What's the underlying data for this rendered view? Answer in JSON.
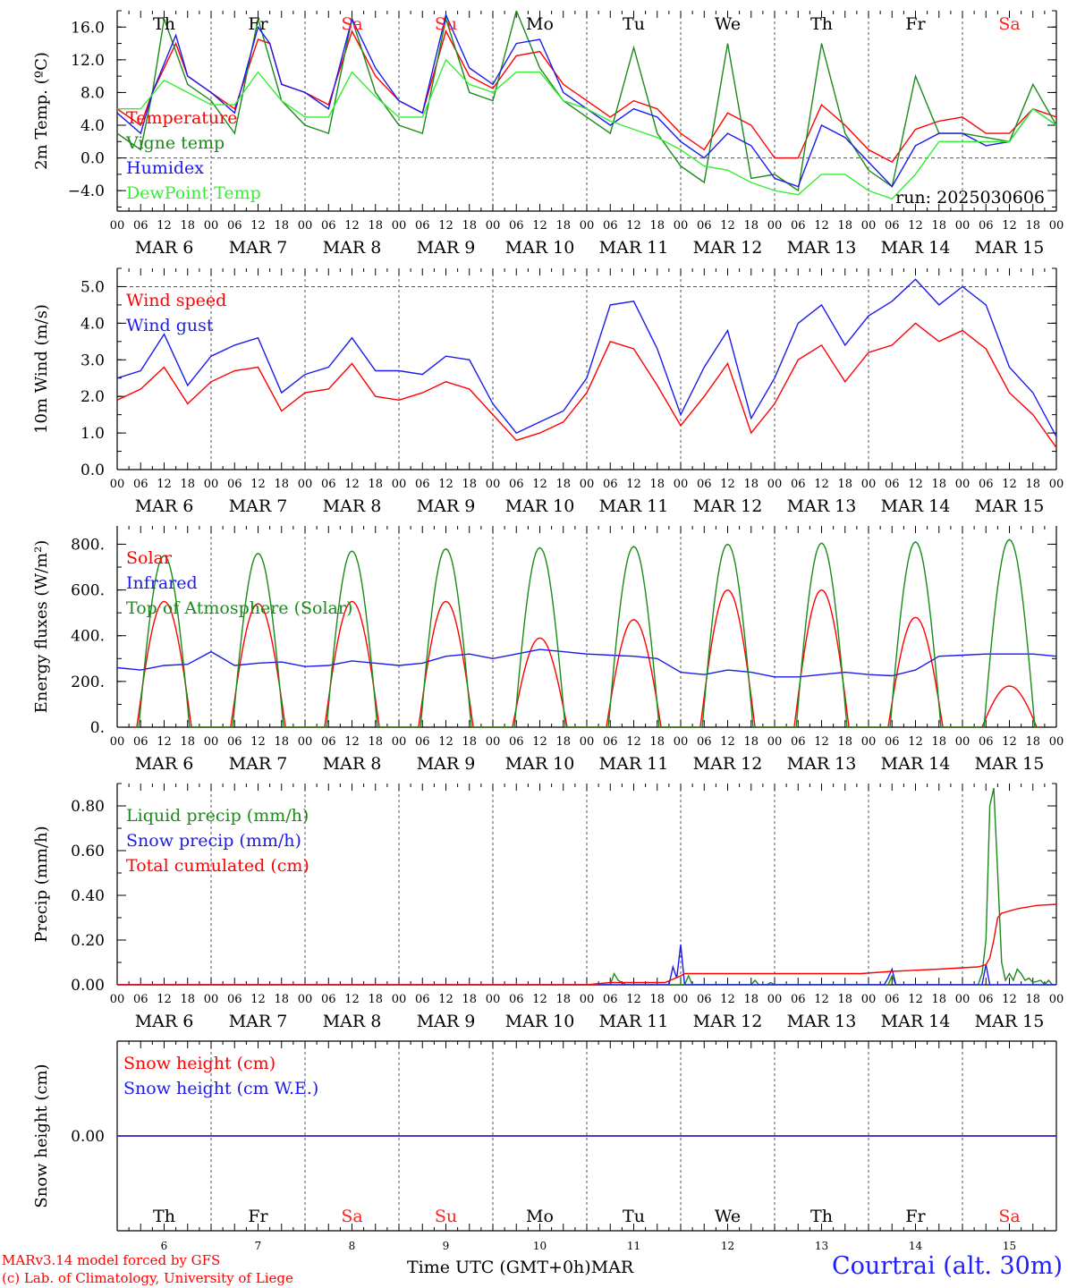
{
  "colors": {
    "red": "#ff0000",
    "green": "#1a8a1a",
    "blue": "#1a1aee",
    "lightgreen": "#33ee33",
    "weekend": "#ff2020",
    "axis": "#000000"
  },
  "run_label": "run: 2025030606",
  "x_axis": {
    "hour_labels": [
      "00",
      "06",
      "12",
      "18"
    ],
    "end_label": "00",
    "dates": [
      "MAR  6",
      "MAR  7",
      "MAR  8",
      "MAR  9",
      "MAR 10",
      "MAR 11",
      "MAR 12",
      "MAR 13",
      "MAR 14",
      "MAR 15"
    ],
    "weekdays": [
      "Th",
      "Fr",
      "Sa",
      "Su",
      "Mo",
      "Tu",
      "We",
      "Th",
      "Fr",
      "Sa"
    ],
    "weekend_flags": [
      false,
      false,
      true,
      true,
      false,
      false,
      false,
      false,
      false,
      true
    ],
    "day_numbers": [
      "6",
      "7",
      "8",
      "9",
      "10",
      "11",
      "12",
      "13",
      "14",
      "15"
    ],
    "title": "Time UTC (GMT+0h)",
    "month": "MAR"
  },
  "footer": {
    "credit1": "MARv3.14 model forced by GFS",
    "credit2": "(c) Lab. of Climatology, University of Liege",
    "station": "Courtrai (alt. 30m)"
  },
  "chart_data": [
    {
      "type": "line",
      "ylabel": "2m Temp. (ºC)",
      "ylim": [
        -6.5,
        18
      ],
      "yticks": [
        -4,
        0,
        4,
        8,
        12,
        16
      ],
      "ytick_labels": [
        "−4.0",
        "0.0",
        "4.0",
        "8.0",
        "12.0",
        "16.0"
      ],
      "ref_lines": [
        0
      ],
      "legend_placement": "top-left",
      "x_unit": "hours since MAR 6 00 UTC",
      "series": [
        {
          "name": "Temperature",
          "color": "red",
          "x": [
            0,
            6,
            9,
            15,
            18,
            24,
            30,
            36,
            39,
            42,
            48,
            54,
            60,
            66,
            72,
            78,
            84,
            90,
            96,
            102,
            108,
            114,
            120,
            126,
            132,
            138,
            144,
            150,
            156,
            162,
            168,
            174,
            180,
            186,
            192,
            198,
            204,
            210,
            216,
            222,
            228,
            234,
            240
          ],
          "values": [
            6,
            4,
            8,
            14,
            10,
            8,
            6,
            14.5,
            14,
            9,
            8,
            6.5,
            15.5,
            10,
            7,
            5.5,
            15.5,
            10,
            8.5,
            12.5,
            13,
            9,
            7,
            5,
            7,
            6,
            3,
            1,
            5.5,
            4,
            0,
            0,
            6.5,
            4,
            1,
            -0.5,
            3.5,
            4.5,
            5,
            3,
            3,
            6,
            5
          ]
        },
        {
          "name": "Vigne temp",
          "color": "green",
          "x": [
            0,
            6,
            9,
            12,
            18,
            24,
            30,
            36,
            42,
            48,
            54,
            60,
            66,
            72,
            78,
            84,
            90,
            96,
            102,
            108,
            114,
            120,
            126,
            132,
            138,
            144,
            150,
            156,
            162,
            168,
            174,
            180,
            186,
            192,
            198,
            204,
            210,
            216,
            222,
            228,
            234,
            240
          ],
          "values": [
            3,
            1,
            8,
            17,
            9,
            7,
            3,
            17,
            7,
            4,
            3,
            17,
            8,
            4,
            3,
            17,
            8,
            7,
            18,
            11,
            7,
            5,
            3,
            13.5,
            3,
            -1,
            -3,
            14,
            -2.5,
            -2,
            -4,
            14,
            3,
            -1.5,
            -3.5,
            10,
            3,
            3,
            2.5,
            2,
            9,
            4
          ]
        },
        {
          "name": "Humidex",
          "color": "blue",
          "x": [
            0,
            6,
            9,
            15,
            18,
            24,
            30,
            36,
            39,
            42,
            48,
            54,
            60,
            66,
            72,
            78,
            84,
            90,
            96,
            102,
            108,
            114,
            120,
            126,
            132,
            138,
            144,
            150,
            156,
            162,
            168,
            174,
            180,
            186,
            192,
            198,
            204,
            210,
            216,
            222,
            228,
            234,
            240
          ],
          "values": [
            5.5,
            3,
            8,
            15,
            10,
            8,
            5.5,
            16,
            14,
            9,
            8,
            6,
            17,
            11,
            7,
            5.5,
            17.5,
            11,
            9,
            14,
            14.5,
            8,
            6,
            4,
            6,
            5,
            2,
            0,
            3,
            1.5,
            -2.5,
            -3.5,
            4,
            2.5,
            -0.5,
            -3.5,
            1.5,
            3,
            3,
            1.5,
            2,
            6,
            4
          ]
        },
        {
          "name": "DewPoint Temp",
          "color": "lightgreen",
          "x": [
            0,
            6,
            12,
            18,
            24,
            30,
            36,
            42,
            48,
            54,
            60,
            66,
            72,
            78,
            84,
            90,
            96,
            102,
            108,
            114,
            120,
            126,
            132,
            138,
            144,
            150,
            156,
            162,
            168,
            174,
            180,
            186,
            192,
            198,
            204,
            210,
            216,
            222,
            228,
            234,
            240
          ],
          "values": [
            6,
            6,
            9.5,
            8,
            6.5,
            6.5,
            10.5,
            7,
            5,
            5,
            10.5,
            7.5,
            5,
            5,
            12,
            9,
            8,
            10.5,
            10.5,
            7,
            6,
            4.5,
            3.5,
            2.5,
            1,
            -1,
            -1.5,
            -3,
            -4,
            -4.5,
            -2,
            -2,
            -4,
            -5,
            -2,
            2,
            2,
            2,
            2,
            6,
            4
          ]
        }
      ]
    },
    {
      "type": "line",
      "ylabel": "10m Wind (m/s)",
      "ylim": [
        0,
        5.5
      ],
      "yticks": [
        0,
        1,
        2,
        3,
        4,
        5
      ],
      "ytick_labels": [
        "0.0",
        "1.0",
        "2.0",
        "3.0",
        "4.0",
        "5.0"
      ],
      "ref_lines": [
        5
      ],
      "legend_placement": "top-left",
      "x_unit": "hours since MAR 6 00 UTC",
      "series": [
        {
          "name": "Wind speed",
          "color": "red",
          "x": [
            0,
            6,
            12,
            18,
            24,
            30,
            36,
            42,
            48,
            54,
            60,
            66,
            72,
            78,
            84,
            90,
            96,
            102,
            108,
            114,
            120,
            126,
            132,
            138,
            144,
            150,
            156,
            162,
            168,
            174,
            180,
            186,
            192,
            198,
            204,
            210,
            216,
            222,
            228,
            234,
            240
          ],
          "values": [
            1.9,
            2.2,
            2.8,
            1.8,
            2.4,
            2.7,
            2.8,
            1.6,
            2.1,
            2.2,
            2.9,
            2.0,
            1.9,
            2.1,
            2.4,
            2.2,
            1.5,
            0.8,
            1.0,
            1.3,
            2.1,
            3.5,
            3.3,
            2.3,
            1.2,
            2.0,
            2.9,
            1.0,
            1.8,
            3.0,
            3.4,
            2.4,
            3.2,
            3.4,
            4.0,
            3.5,
            3.8,
            3.3,
            2.1,
            1.5,
            0.6
          ]
        },
        {
          "name": "Wind gust",
          "color": "blue",
          "x": [
            0,
            6,
            12,
            18,
            24,
            30,
            36,
            42,
            48,
            54,
            60,
            66,
            72,
            78,
            84,
            90,
            96,
            102,
            108,
            114,
            120,
            126,
            132,
            138,
            144,
            150,
            156,
            162,
            168,
            174,
            180,
            186,
            192,
            198,
            204,
            210,
            216,
            222,
            228,
            234,
            240
          ],
          "values": [
            2.5,
            2.7,
            3.7,
            2.3,
            3.1,
            3.4,
            3.6,
            2.1,
            2.6,
            2.8,
            3.6,
            2.7,
            2.7,
            2.6,
            3.1,
            3.0,
            1.8,
            1.0,
            1.3,
            1.6,
            2.5,
            4.5,
            4.6,
            3.3,
            1.5,
            2.8,
            3.8,
            1.4,
            2.5,
            4.0,
            4.5,
            3.4,
            4.2,
            4.6,
            5.2,
            4.5,
            5.0,
            4.5,
            2.8,
            2.1,
            0.9
          ]
        }
      ]
    },
    {
      "type": "line",
      "ylabel": "Energy fluxes (W/m²)",
      "ylim": [
        0,
        880
      ],
      "yticks": [
        0,
        200,
        400,
        600,
        800
      ],
      "ytick_labels": [
        "0.",
        "200.",
        "400.",
        "600.",
        "800."
      ],
      "legend_placement": "top-left",
      "x_unit": "hours since MAR 6 00 UTC",
      "series": [
        {
          "name": "Solar",
          "color": "red",
          "peak_hour": 12,
          "half_width_hours": 7,
          "daily_peaks": [
            550,
            540,
            550,
            550,
            390,
            470,
            600,
            600,
            480,
            180
          ]
        },
        {
          "name": "Infrared",
          "color": "blue",
          "x": [
            0,
            6,
            12,
            18,
            24,
            30,
            36,
            42,
            48,
            54,
            60,
            66,
            72,
            78,
            84,
            90,
            96,
            102,
            108,
            114,
            120,
            126,
            132,
            138,
            144,
            150,
            156,
            162,
            168,
            174,
            180,
            186,
            192,
            198,
            204,
            210,
            216,
            222,
            228,
            234,
            240
          ],
          "values": [
            260,
            250,
            270,
            275,
            330,
            270,
            280,
            285,
            265,
            270,
            290,
            280,
            270,
            280,
            310,
            320,
            300,
            320,
            340,
            330,
            320,
            315,
            310,
            300,
            240,
            230,
            250,
            240,
            220,
            220,
            230,
            240,
            230,
            225,
            250,
            310,
            315,
            320,
            320,
            320,
            310
          ]
        },
        {
          "name": "Top of Atmosphere (Solar)",
          "color": "green",
          "peak_hour": 12,
          "half_width_hours": 6.5,
          "daily_peaks": [
            750,
            760,
            770,
            780,
            785,
            790,
            800,
            805,
            810,
            820
          ]
        }
      ]
    },
    {
      "type": "line",
      "ylabel": "Precip (mm/h)",
      "ylim": [
        0,
        0.9
      ],
      "yticks": [
        0,
        0.2,
        0.4,
        0.6,
        0.8
      ],
      "ytick_labels": [
        "0.00",
        "0.20",
        "0.40",
        "0.60",
        "0.80"
      ],
      "legend_placement": "top-left",
      "x_unit": "hours since MAR 6 00 UTC",
      "series": [
        {
          "name": "Liquid precip (mm/h)",
          "color": "green",
          "x": [
            0,
            126,
            127,
            128,
            130,
            131,
            145,
            146,
            147,
            162,
            163,
            164,
            166,
            167,
            168,
            197,
            198,
            199,
            220,
            221,
            222,
            223,
            224,
            225,
            226,
            227,
            228,
            229,
            230,
            231,
            232,
            233,
            234,
            236,
            237,
            238,
            239,
            240
          ],
          "values": [
            0,
            0,
            0.05,
            0.02,
            0,
            0,
            0,
            0.04,
            0,
            0,
            0.02,
            0,
            0,
            0.01,
            0,
            0,
            0.04,
            0,
            0,
            0.05,
            0.2,
            0.8,
            0.88,
            0.5,
            0.1,
            0.02,
            0.05,
            0.02,
            0.07,
            0.05,
            0.02,
            0.03,
            0.01,
            0.02,
            0.0,
            0.02,
            0.0,
            0
          ]
        },
        {
          "name": "Snow precip (mm/h)",
          "color": "blue",
          "x": [
            0,
            141,
            142,
            143,
            144,
            145,
            146,
            196,
            197,
            198,
            199,
            221,
            222,
            223,
            240
          ],
          "values": [
            0,
            0,
            0.08,
            0.03,
            0.18,
            0.0,
            0,
            0,
            0.03,
            0.07,
            0,
            0,
            0.09,
            0,
            0
          ]
        },
        {
          "name": "Total cumulated (cm)",
          "color": "red",
          "x": [
            0,
            120,
            126,
            140,
            144,
            145,
            170,
            190,
            198,
            210,
            220,
            222,
            223,
            224,
            225,
            226,
            230,
            235,
            240
          ],
          "values": [
            0,
            0,
            0.01,
            0.01,
            0.04,
            0.05,
            0.05,
            0.05,
            0.06,
            0.07,
            0.08,
            0.09,
            0.12,
            0.2,
            0.3,
            0.32,
            0.34,
            0.355,
            0.36
          ]
        }
      ]
    },
    {
      "type": "line",
      "ylabel": "Snow height (cm)",
      "ylim": [
        -1,
        1
      ],
      "yticks": [
        0
      ],
      "ytick_labels": [
        "0.00"
      ],
      "legend_placement": "top-left",
      "x_unit": "hours since MAR 6 00 UTC",
      "series": [
        {
          "name": "Snow height (cm)",
          "color": "red",
          "x": [
            0,
            240
          ],
          "values": [
            0,
            0
          ]
        },
        {
          "name": "Snow height (cm W.E.)",
          "color": "blue",
          "x": [
            0,
            240
          ],
          "values": [
            0,
            0
          ]
        }
      ]
    }
  ]
}
